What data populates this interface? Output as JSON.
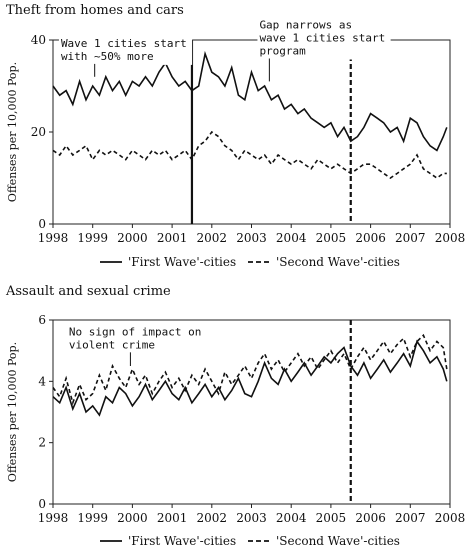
{
  "chart_data": [
    {
      "type": "line",
      "title": "Theft from homes and cars",
      "ylabel": "Offenses per 10,000 Pop.",
      "xlim": [
        1998,
        2008
      ],
      "ylim": [
        0,
        40
      ],
      "xticks": [
        "1998",
        "1999",
        "2000",
        "2001",
        "2002",
        "2003",
        "2004",
        "2005",
        "2006",
        "2007",
        "2008"
      ],
      "yticks": [
        "0",
        "20",
        "40"
      ],
      "legend_position": "bottom",
      "grid": false,
      "series": [
        {
          "name": "'First Wave'-cities",
          "style": "solid",
          "x": [
            1998.0,
            1998.17,
            1998.33,
            1998.5,
            1998.67,
            1998.83,
            1999.0,
            1999.17,
            1999.33,
            1999.5,
            1999.67,
            1999.83,
            2000.0,
            2000.17,
            2000.33,
            2000.5,
            2000.67,
            2000.83,
            2001.0,
            2001.17,
            2001.33,
            2001.5,
            2001.67,
            2001.83,
            2002.0,
            2002.17,
            2002.33,
            2002.5,
            2002.67,
            2002.83,
            2003.0,
            2003.17,
            2003.33,
            2003.5,
            2003.67,
            2003.83,
            2004.0,
            2004.17,
            2004.33,
            2004.5,
            2004.67,
            2004.83,
            2005.0,
            2005.17,
            2005.33,
            2005.5,
            2005.67,
            2005.83,
            2006.0,
            2006.17,
            2006.33,
            2006.5,
            2006.67,
            2006.83,
            2007.0,
            2007.17,
            2007.33,
            2007.5,
            2007.67,
            2007.83,
            2007.92
          ],
          "values": [
            30,
            28,
            29,
            26,
            31,
            27,
            30,
            28,
            32,
            29,
            31,
            28,
            31,
            30,
            32,
            30,
            33,
            35,
            32,
            30,
            31,
            29,
            30,
            37,
            33,
            32,
            30,
            34,
            28,
            27,
            33,
            29,
            30,
            27,
            28,
            25,
            26,
            24,
            25,
            23,
            22,
            21,
            22,
            19,
            21,
            18,
            19,
            21,
            24,
            23,
            22,
            20,
            21,
            18,
            23,
            22,
            19,
            17,
            16,
            19,
            21
          ]
        },
        {
          "name": "'Second Wave'-cities",
          "style": "dashed",
          "x": [
            1998.0,
            1998.17,
            1998.33,
            1998.5,
            1998.67,
            1998.83,
            1999.0,
            1999.17,
            1999.33,
            1999.5,
            1999.67,
            1999.83,
            2000.0,
            2000.17,
            2000.33,
            2000.5,
            2000.67,
            2000.83,
            2001.0,
            2001.17,
            2001.33,
            2001.5,
            2001.67,
            2001.83,
            2002.0,
            2002.17,
            2002.33,
            2002.5,
            2002.67,
            2002.83,
            2003.0,
            2003.17,
            2003.33,
            2003.5,
            2003.67,
            2003.83,
            2004.0,
            2004.17,
            2004.33,
            2004.5,
            2004.67,
            2004.83,
            2005.0,
            2005.17,
            2005.33,
            2005.5,
            2005.67,
            2005.83,
            2006.0,
            2006.17,
            2006.33,
            2006.5,
            2006.67,
            2006.83,
            2007.0,
            2007.17,
            2007.33,
            2007.5,
            2007.67,
            2007.83,
            2007.92
          ],
          "values": [
            16,
            15,
            17,
            15,
            16,
            17,
            14,
            16,
            15,
            16,
            15,
            14,
            16,
            15,
            14,
            16,
            15,
            16,
            14,
            15,
            16,
            14,
            17,
            18,
            20,
            19,
            17,
            16,
            14,
            16,
            15,
            14,
            15,
            13,
            15,
            14,
            13,
            14,
            13,
            12,
            14,
            13,
            12,
            13,
            12,
            11,
            12,
            13,
            13,
            12,
            11,
            10,
            11,
            12,
            13,
            15,
            12,
            11,
            10,
            11,
            11
          ]
        }
      ],
      "reference_lines": [
        {
          "x": 2001.5,
          "style": "solid"
        },
        {
          "x": 2005.5,
          "style": "dashed"
        }
      ],
      "annotations": [
        {
          "lines": [
            "Wave 1 cities start",
            "with ~50% more"
          ],
          "x": 1998.2,
          "y": 38.5,
          "arrow_to": [
            1999.05,
            32
          ]
        },
        {
          "lines": [
            "Gap narrows as",
            "wave 1 cities start",
            "program"
          ],
          "x": 2003.2,
          "y": 42.5,
          "arrow_to": [
            2003.45,
            31
          ]
        }
      ]
    },
    {
      "type": "line",
      "title": "Assault and sexual crime",
      "ylabel": "Offenses per 10,000 Pop.",
      "xlim": [
        1998,
        2008
      ],
      "ylim": [
        0,
        6
      ],
      "xticks": [
        "1998",
        "1999",
        "2000",
        "2001",
        "2002",
        "2003",
        "2004",
        "2005",
        "2006",
        "2007",
        "2008"
      ],
      "yticks": [
        "0",
        "2",
        "4",
        "6"
      ],
      "legend_position": "bottom",
      "grid": false,
      "series": [
        {
          "name": "'First Wave'-cities",
          "style": "solid",
          "x": [
            1998.0,
            1998.17,
            1998.33,
            1998.5,
            1998.67,
            1998.83,
            1999.0,
            1999.17,
            1999.33,
            1999.5,
            1999.67,
            1999.83,
            2000.0,
            2000.17,
            2000.33,
            2000.5,
            2000.67,
            2000.83,
            2001.0,
            2001.17,
            2001.33,
            2001.5,
            2001.67,
            2001.83,
            2002.0,
            2002.17,
            2002.33,
            2002.5,
            2002.67,
            2002.83,
            2003.0,
            2003.17,
            2003.33,
            2003.5,
            2003.67,
            2003.83,
            2004.0,
            2004.17,
            2004.33,
            2004.5,
            2004.67,
            2004.83,
            2005.0,
            2005.17,
            2005.33,
            2005.5,
            2005.67,
            2005.83,
            2006.0,
            2006.17,
            2006.33,
            2006.5,
            2006.67,
            2006.83,
            2007.0,
            2007.17,
            2007.33,
            2007.5,
            2007.67,
            2007.83,
            2007.92
          ],
          "values": [
            3.5,
            3.3,
            3.8,
            3.1,
            3.6,
            3.0,
            3.2,
            2.9,
            3.5,
            3.3,
            3.8,
            3.6,
            3.2,
            3.5,
            3.9,
            3.4,
            3.7,
            4.0,
            3.6,
            3.4,
            3.8,
            3.3,
            3.6,
            3.9,
            3.5,
            3.8,
            3.4,
            3.7,
            4.1,
            3.6,
            3.5,
            4.0,
            4.6,
            4.1,
            3.9,
            4.4,
            4.0,
            4.3,
            4.6,
            4.2,
            4.5,
            4.8,
            4.6,
            4.9,
            5.1,
            4.5,
            4.2,
            4.6,
            4.1,
            4.4,
            4.7,
            4.3,
            4.6,
            4.9,
            4.5,
            5.3,
            5.0,
            4.6,
            4.8,
            4.4,
            4.0
          ]
        },
        {
          "name": "'Second Wave'-cities",
          "style": "dashed",
          "x": [
            1998.0,
            1998.17,
            1998.33,
            1998.5,
            1998.67,
            1998.83,
            1999.0,
            1999.17,
            1999.33,
            1999.5,
            1999.67,
            1999.83,
            2000.0,
            2000.17,
            2000.33,
            2000.5,
            2000.67,
            2000.83,
            2001.0,
            2001.17,
            2001.33,
            2001.5,
            2001.67,
            2001.83,
            2002.0,
            2002.17,
            2002.33,
            2002.5,
            2002.67,
            2002.83,
            2003.0,
            2003.17,
            2003.33,
            2003.5,
            2003.67,
            2003.83,
            2004.0,
            2004.17,
            2004.33,
            2004.5,
            2004.67,
            2004.83,
            2005.0,
            2005.17,
            2005.33,
            2005.5,
            2005.67,
            2005.83,
            2006.0,
            2006.17,
            2006.33,
            2006.5,
            2006.67,
            2006.83,
            2007.0,
            2007.17,
            2007.33,
            2007.5,
            2007.67,
            2007.83,
            2007.92
          ],
          "values": [
            3.8,
            3.5,
            4.1,
            3.3,
            3.9,
            3.4,
            3.6,
            4.2,
            3.7,
            4.5,
            4.1,
            3.8,
            4.4,
            3.9,
            4.2,
            3.6,
            4.0,
            4.3,
            3.8,
            4.1,
            3.7,
            4.2,
            3.9,
            4.4,
            4.0,
            3.6,
            4.3,
            3.9,
            4.2,
            4.5,
            4.1,
            4.6,
            4.9,
            4.4,
            4.7,
            4.3,
            4.6,
            4.9,
            4.5,
            4.8,
            4.4,
            4.7,
            5.0,
            4.6,
            4.9,
            4.4,
            4.8,
            5.1,
            4.7,
            5.0,
            5.3,
            4.9,
            5.2,
            5.4,
            4.8,
            5.3,
            5.5,
            5.0,
            5.3,
            5.1,
            4.4
          ]
        }
      ],
      "reference_lines": [
        {
          "x": 2005.5,
          "style": "dashed"
        }
      ],
      "annotations": [
        {
          "lines": [
            "No sign of impact on",
            "violent crime"
          ],
          "x": 1998.4,
          "y": 5.5,
          "arrow_to": [
            1999.95,
            4.5
          ]
        }
      ]
    }
  ]
}
